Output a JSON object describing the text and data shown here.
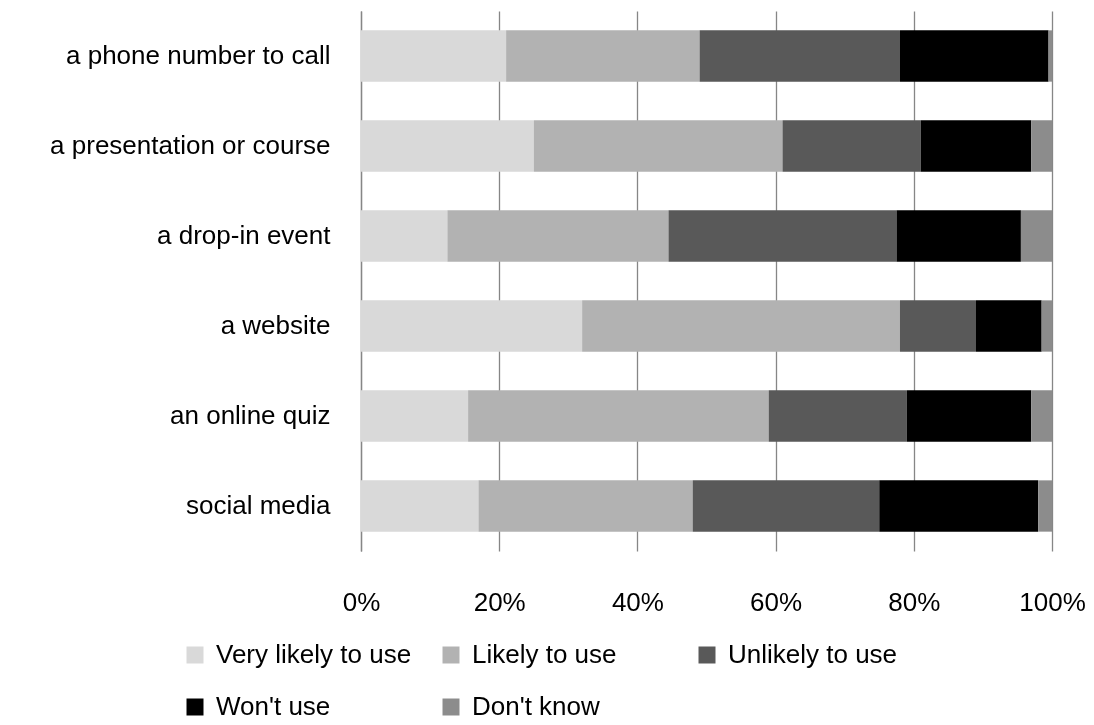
{
  "chart_data": {
    "type": "bar",
    "orientation": "horizontal",
    "stacked": true,
    "categories": [
      "a phone number to call",
      "a presentation or course",
      "a drop-in event",
      "a website",
      "an online quiz",
      "social media"
    ],
    "series": [
      {
        "name": "Very likely to use",
        "color": "#d9d9d9",
        "values": [
          21,
          25,
          12.5,
          32,
          15.5,
          17
        ]
      },
      {
        "name": "Likely to use",
        "color": "#b2b2b2",
        "values": [
          28,
          36,
          32,
          46,
          43.5,
          31
        ]
      },
      {
        "name": "Unlikely to use",
        "color": "#595959",
        "values": [
          29,
          20,
          33,
          11,
          20,
          27
        ]
      },
      {
        "name": "Won't use",
        "color": "#000000",
        "values": [
          21.5,
          16,
          18,
          9.5,
          18,
          23
        ]
      },
      {
        "name": "Don't know",
        "color": "#8c8c8c",
        "values": [
          0.5,
          3,
          4.5,
          1.5,
          3,
          2
        ]
      }
    ],
    "xlim": [
      0,
      100
    ],
    "xticks": [
      {
        "value": 0,
        "label": "0%"
      },
      {
        "value": 20,
        "label": "20%"
      },
      {
        "value": 40,
        "label": "40%"
      },
      {
        "value": 60,
        "label": "60%"
      },
      {
        "value": 80,
        "label": "80%"
      },
      {
        "value": 100,
        "label": "100%"
      }
    ],
    "grid": "x",
    "legend": "bottom"
  }
}
